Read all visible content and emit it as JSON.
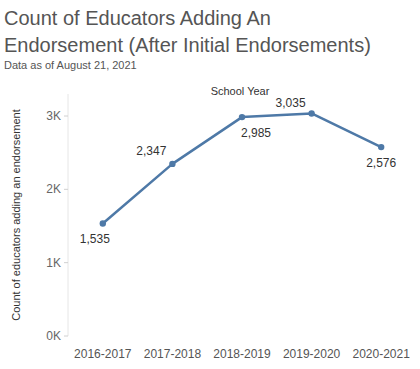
{
  "chart_data": {
    "type": "line",
    "title": "Count of Educators Adding An Endorsement (After Initial Endorsements)",
    "subtitle": "Data as of August 21, 2021",
    "x_label": "School Year",
    "y_label": "Count of educators adding an endorsement",
    "categories": [
      "2016-2017",
      "2017-2018",
      "2018-2019",
      "2019-2020",
      "2020-2021"
    ],
    "values": [
      1535,
      2347,
      2985,
      3035,
      2576
    ],
    "value_labels": [
      "1,535",
      "2,347",
      "2,985",
      "3,035",
      "2,576"
    ],
    "color": "#4e79a7",
    "marker": "circle",
    "ylim": [
      0,
      3300
    ],
    "yticks": [
      {
        "value": 0,
        "label": "0K"
      },
      {
        "value": 1000,
        "label": "1K"
      },
      {
        "value": 2000,
        "label": "2K"
      },
      {
        "value": 3000,
        "label": "3K"
      }
    ],
    "grid": false,
    "data_labels": true
  }
}
